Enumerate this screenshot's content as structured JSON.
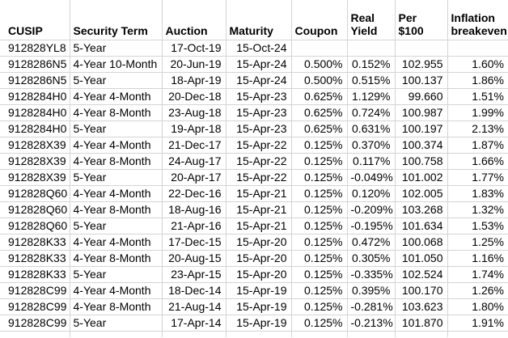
{
  "app": {
    "kind": "spreadsheet",
    "description": "Treasury TIPS auction results table"
  },
  "colors": {
    "background": "#ffffff",
    "gridline": "#d4d4d4",
    "text": "#000000"
  },
  "table": {
    "columns": [
      {
        "key": "cusip",
        "label": "CUSIP",
        "align": "left"
      },
      {
        "key": "security_term",
        "label": "Security Term",
        "align": "left"
      },
      {
        "key": "auction",
        "label": "Auction",
        "align": "right"
      },
      {
        "key": "maturity",
        "label": "Maturity",
        "align": "right"
      },
      {
        "key": "coupon",
        "label": "Coupon",
        "align": "right"
      },
      {
        "key": "real_yield",
        "label": "Real Yield",
        "align": "right"
      },
      {
        "key": "per_100",
        "label": "Per $100",
        "align": "right"
      },
      {
        "key": "inflation_breakeven",
        "label": "Inflation breakeven",
        "align": "right"
      }
    ],
    "rows": [
      [
        "912828YL8",
        "5-Year",
        "17-Oct-19",
        "15-Oct-24",
        "",
        "",
        "",
        ""
      ],
      [
        "9128286N5",
        "4-Year 10-Month",
        "20-Jun-19",
        "15-Apr-24",
        "0.500%",
        "0.152%",
        "102.955",
        "1.60%"
      ],
      [
        "9128286N5",
        "5-Year",
        "18-Apr-19",
        "15-Apr-24",
        "0.500%",
        "0.515%",
        "100.137",
        "1.86%"
      ],
      [
        "9128284H0",
        "4-Year 4-Month",
        "20-Dec-18",
        "15-Apr-23",
        "0.625%",
        "1.129%",
        "99.660",
        "1.51%"
      ],
      [
        "9128284H0",
        "4-Year 8-Month",
        "23-Aug-18",
        "15-Apr-23",
        "0.625%",
        "0.724%",
        "100.987",
        "1.99%"
      ],
      [
        "9128284H0",
        "5-Year",
        "19-Apr-18",
        "15-Apr-23",
        "0.625%",
        "0.631%",
        "100.197",
        "2.13%"
      ],
      [
        "912828X39",
        "4-Year 4-Month",
        "21-Dec-17",
        "15-Apr-22",
        "0.125%",
        "0.370%",
        "100.374",
        "1.87%"
      ],
      [
        "912828X39",
        "4-Year 8-Month",
        "24-Aug-17",
        "15-Apr-22",
        "0.125%",
        "0.117%",
        "100.758",
        "1.66%"
      ],
      [
        "912828X39",
        "5-Year",
        "20-Apr-17",
        "15-Apr-22",
        "0.125%",
        "-0.049%",
        "101.002",
        "1.77%"
      ],
      [
        "912828Q60",
        "4-Year 4-Month",
        "22-Dec-16",
        "15-Apr-21",
        "0.125%",
        "0.120%",
        "102.005",
        "1.83%"
      ],
      [
        "912828Q60",
        "4-Year 8-Month",
        "18-Aug-16",
        "15-Apr-21",
        "0.125%",
        "-0.209%",
        "103.268",
        "1.32%"
      ],
      [
        "912828Q60",
        "5-Year",
        "21-Apr-16",
        "15-Apr-21",
        "0.125%",
        "-0.195%",
        "101.634",
        "1.53%"
      ],
      [
        "912828K33",
        "4-Year 4-Month",
        "17-Dec-15",
        "15-Apr-20",
        "0.125%",
        "0.472%",
        "100.068",
        "1.25%"
      ],
      [
        "912828K33",
        "4-Year 8-Month",
        "20-Aug-15",
        "15-Apr-20",
        "0.125%",
        "0.305%",
        "101.050",
        "1.16%"
      ],
      [
        "912828K33",
        "5-Year",
        "23-Apr-15",
        "15-Apr-20",
        "0.125%",
        "-0.335%",
        "102.524",
        "1.74%"
      ],
      [
        "912828C99",
        "4-Year 4-Month",
        "18-Dec-14",
        "15-Apr-19",
        "0.125%",
        "0.395%",
        "100.170",
        "1.26%"
      ],
      [
        "912828C99",
        "4-Year 8-Month",
        "21-Aug-14",
        "15-Apr-19",
        "0.125%",
        "-0.281%",
        "103.623",
        "1.80%"
      ],
      [
        "912828C99",
        "5-Year",
        "17-Apr-14",
        "15-Apr-19",
        "0.125%",
        "-0.213%",
        "101.870",
        "1.91%"
      ]
    ]
  }
}
